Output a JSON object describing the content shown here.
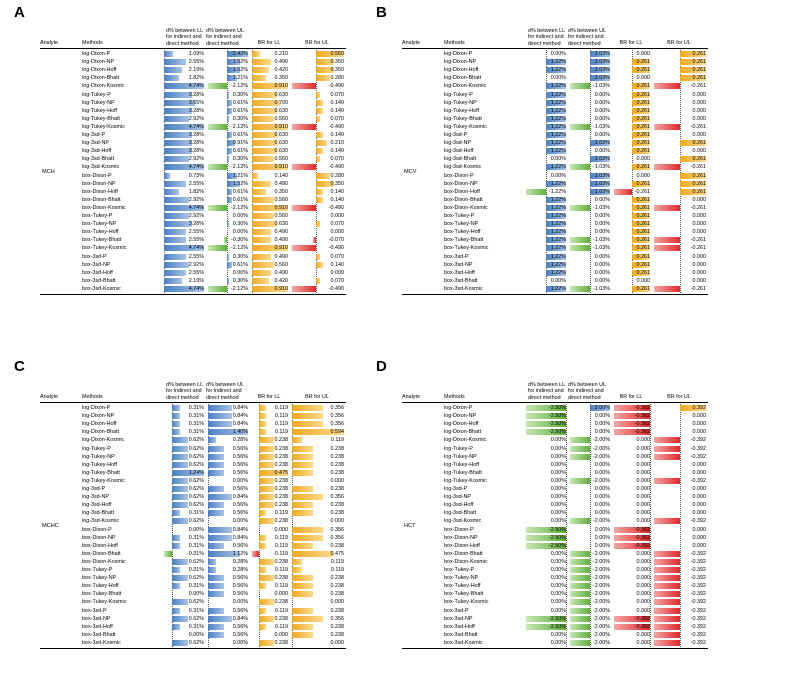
{
  "headers": {
    "analyte": "Analyte",
    "methods": "Methods",
    "dLL": "d% between LL for indirect and direct method",
    "dUL": "d% between UL for indirect and direct method",
    "brLL": "BR for LL",
    "brUL": "BR for UL"
  },
  "panels": [
    {
      "letter": "A",
      "analyte": "MCH",
      "rows": [
        [
          "log-Dixon-P",
          "1.09%",
          "2.42%",
          "0.210",
          "0.560"
        ],
        [
          "log-Dixon-NP",
          "2.55%",
          "1.52%",
          "0.490",
          "0.350"
        ],
        [
          "log-Dixon-Hoff",
          "2.19%",
          "1.52%",
          "0.420",
          "0.350"
        ],
        [
          "log-Dixon-Bhatt",
          "1.82%",
          "1.21%",
          "0.350",
          "0.280"
        ],
        [
          "log-Dixon-Kosmic",
          "4.74%",
          "-2.12%",
          "0.910",
          "-0.490"
        ],
        [
          "log-Tukey-P",
          "3.28%",
          "0.30%",
          "0.630",
          "0.070"
        ],
        [
          "log-Tukey-NP",
          "3.65%",
          "0.61%",
          "0.700",
          "0.140"
        ],
        [
          "log-Tukey-Hoff",
          "3.28%",
          "0.61%",
          "0.630",
          "0.140"
        ],
        [
          "log-Tukey-Bhatt",
          "2.92%",
          "0.30%",
          "0.560",
          "0.070"
        ],
        [
          "log-Tukey-Kosmic",
          "4.74%",
          "-2.12%",
          "0.910",
          "-0.490"
        ],
        [
          "log-3sd-P",
          "3.28%",
          "0.61%",
          "0.630",
          "0.140"
        ],
        [
          "log-3sd-NP",
          "3.28%",
          "0.91%",
          "0.630",
          "0.210"
        ],
        [
          "log-3sd-Hoff",
          "3.28%",
          "0.61%",
          "0.630",
          "0.140"
        ],
        [
          "log-3sd-Bhatt",
          "2.92%",
          "0.30%",
          "0.560",
          "0.070"
        ],
        [
          "log-3sd-Kosmic",
          "4.74%",
          "-2.12%",
          "0.910",
          "-0.490"
        ],
        [
          "box-Dixon-P",
          "0.73%",
          "1.21%",
          "0.140",
          "0.280"
        ],
        [
          "box-Dixon-NP",
          "2.55%",
          "1.52%",
          "0.490",
          "0.350"
        ],
        [
          "box-Dixon-Hoff",
          "1.82%",
          "0.61%",
          "0.350",
          "0.140"
        ],
        [
          "box-Dixon-Bhatt",
          "2.92%",
          "0.61%",
          "0.560",
          "0.140"
        ],
        [
          "box-Dixon-Kosmic",
          "4.74%",
          "-2.12%",
          "0.910",
          "-0.490"
        ],
        [
          "box-Tukey-P",
          "2.92%",
          "0.00%",
          "0.560",
          "0.000"
        ],
        [
          "box-Tukey-NP",
          "3.28%",
          "0.30%",
          "0.630",
          "0.070"
        ],
        [
          "box-Tukey-Hoff",
          "2.55%",
          "0.00%",
          "0.490",
          "0.000"
        ],
        [
          "box-Tukey-Bhatt",
          "2.55%",
          "-0.30%",
          "0.490",
          "-0.070"
        ],
        [
          "box-Tukey-Kosmic",
          "4.74%",
          "-2.12%",
          "0.910",
          "-0.490"
        ],
        [
          "box-3sd-P",
          "2.55%",
          "0.30%",
          "0.490",
          "0.070"
        ],
        [
          "box-3sd-NP",
          "2.92%",
          "0.61%",
          "0.560",
          "0.140"
        ],
        [
          "box-3sd-Hoff",
          "2.55%",
          "0.00%",
          "0.490",
          "0.000"
        ],
        [
          "box-3sd-Bhatt",
          "2.19%",
          "0.30%",
          "0.420",
          "0.070"
        ],
        [
          "box-3sd-Kosmic",
          "4.74%",
          "-2.12%",
          "0.910",
          "-0.490"
        ]
      ]
    },
    {
      "letter": "B",
      "analyte": "MCV",
      "rows": [
        [
          "log-Dixon-P",
          "0.00%",
          "1.03%",
          "0.000",
          "0.261"
        ],
        [
          "log-Dixon-NP",
          "1.22%",
          "1.03%",
          "0.261",
          "0.261"
        ],
        [
          "log-Dixon-Hoff",
          "1.22%",
          "1.03%",
          "0.261",
          "0.261"
        ],
        [
          "log-Dixon-Bhatt",
          "0.00%",
          "1.03%",
          "0.000",
          "0.261"
        ],
        [
          "log-Dixon-Kosmic",
          "1.22%",
          "-1.03%",
          "0.261",
          "-0.261"
        ],
        [
          "log-Tukey-P",
          "1.22%",
          "0.00%",
          "0.261",
          "0.000"
        ],
        [
          "log-Tukey-NP",
          "1.22%",
          "0.00%",
          "0.261",
          "0.000"
        ],
        [
          "log-Tukey-Hoff",
          "1.22%",
          "0.00%",
          "0.261",
          "0.000"
        ],
        [
          "log-Tukey-Bhatt",
          "1.22%",
          "0.00%",
          "0.261",
          "0.000"
        ],
        [
          "log-Tukey-Kosmic",
          "1.22%",
          "-1.03%",
          "0.261",
          "-0.261"
        ],
        [
          "log-3sd-P",
          "1.22%",
          "0.00%",
          "0.261",
          "0.000"
        ],
        [
          "log-3sd-NP",
          "1.22%",
          "1.03%",
          "0.261",
          "0.261"
        ],
        [
          "log-3sd-Hoff",
          "1.22%",
          "0.00%",
          "0.261",
          "0.000"
        ],
        [
          "log-3sd-Bhatt",
          "0.00%",
          "1.03%",
          "0.000",
          "0.261"
        ],
        [
          "log-3sd-Kosmic",
          "1.22%",
          "-1.03%",
          "0.261",
          "-0.261"
        ],
        [
          "box-Dixon-P",
          "0.00%",
          "1.03%",
          "0.000",
          "0.261"
        ],
        [
          "box-Dixon-NP",
          "1.22%",
          "1.03%",
          "0.261",
          "0.261"
        ],
        [
          "box-Dixon-Hoff",
          "-1.22%",
          "1.03%",
          "-0.261",
          "0.261"
        ],
        [
          "box-Dixon-Bhatt",
          "1.22%",
          "0.00%",
          "0.261",
          "0.000"
        ],
        [
          "box-Dixon-Kosmic",
          "1.22%",
          "-1.03%",
          "0.261",
          "-0.261"
        ],
        [
          "box-Tukey-P",
          "1.22%",
          "0.00%",
          "0.261",
          "0.000"
        ],
        [
          "box-Tukey-NP",
          "1.22%",
          "0.00%",
          "0.261",
          "0.000"
        ],
        [
          "box-Tukey-Hoff",
          "1.22%",
          "0.00%",
          "0.261",
          "0.000"
        ],
        [
          "box-Tukey-Bhatt",
          "1.22%",
          "-1.03%",
          "0.261",
          "-0.261"
        ],
        [
          "box-Tukey-Kosmic",
          "1.22%",
          "-1.03%",
          "0.261",
          "-0.261"
        ],
        [
          "box-3sd-P",
          "1.22%",
          "0.00%",
          "0.261",
          "0.000"
        ],
        [
          "box-3sd-NP",
          "1.22%",
          "0.00%",
          "0.261",
          "0.000"
        ],
        [
          "box-3sd-Hoff",
          "1.22%",
          "0.00%",
          "0.261",
          "0.000"
        ],
        [
          "box-3sd-Bhatt",
          "0.00%",
          "0.00%",
          "0.000",
          "0.000"
        ],
        [
          "box-3sd-Kosmic",
          "1.22%",
          "-1.03%",
          "0.261",
          "-0.261"
        ]
      ]
    },
    {
      "letter": "C",
      "analyte": "MCHC",
      "rows": [
        [
          "log-Dixon-P",
          "0.31%",
          "0.84%",
          "0.119",
          "0.356"
        ],
        [
          "log-Dixon-NP",
          "0.31%",
          "0.84%",
          "0.119",
          "0.356"
        ],
        [
          "log-Dixon-Hoff",
          "0.31%",
          "0.84%",
          "0.119",
          "0.356"
        ],
        [
          "log-Dixon-Bhatt",
          "0.31%",
          "1.40%",
          "0.119",
          "0.594"
        ],
        [
          "log-Dixon-Kosmic",
          "0.62%",
          "0.28%",
          "0.238",
          "0.119"
        ],
        [
          "log-Tukey-P",
          "0.62%",
          "0.56%",
          "0.238",
          "0.238"
        ],
        [
          "log-Tukey-NP",
          "0.62%",
          "0.56%",
          "0.238",
          "0.238"
        ],
        [
          "log-Tukey-Hoff",
          "0.62%",
          "0.56%",
          "0.238",
          "0.238"
        ],
        [
          "log-Tukey-Bhatt",
          "1.24%",
          "0.56%",
          "0.475",
          "0.238"
        ],
        [
          "log-Tukey-Kosmic",
          "0.62%",
          "0.00%",
          "0.238",
          "0.000"
        ],
        [
          "log-3sd-P",
          "0.62%",
          "0.56%",
          "0.238",
          "0.238"
        ],
        [
          "log-3sd-NP",
          "0.62%",
          "0.84%",
          "0.238",
          "0.356"
        ],
        [
          "log-3sd-Hoff",
          "0.62%",
          "0.56%",
          "0.238",
          "0.238"
        ],
        [
          "log-3sd-Bhatt",
          "0.31%",
          "0.56%",
          "0.119",
          "0.238"
        ],
        [
          "log-3sd-Kosmic",
          "0.62%",
          "0.00%",
          "0.238",
          "0.000"
        ],
        [
          "box-Dixon-P",
          "0.00%",
          "0.84%",
          "0.000",
          "0.356"
        ],
        [
          "box-Dixon-NP",
          "0.31%",
          "0.84%",
          "0.119",
          "0.356"
        ],
        [
          "box-Dixon-Hoff",
          "0.31%",
          "0.56%",
          "0.119",
          "0.238"
        ],
        [
          "box-Dixon-Bhatt",
          "-0.31%",
          "1.12%",
          "-0.119",
          "0.475"
        ],
        [
          "box-Dixon-Kosmic",
          "0.62%",
          "0.28%",
          "0.238",
          "0.119"
        ],
        [
          "box-Tukey-P",
          "0.31%",
          "0.28%",
          "0.119",
          "0.119"
        ],
        [
          "box-Tukey-NP",
          "0.62%",
          "0.56%",
          "0.238",
          "0.238"
        ],
        [
          "box-Tukey-Hoff",
          "0.31%",
          "0.56%",
          "0.119",
          "0.238"
        ],
        [
          "box-Tukey-Bhatt",
          "0.00%",
          "0.56%",
          "0.000",
          "0.238"
        ],
        [
          "box-Tukey-Kosmic",
          "0.62%",
          "0.00%",
          "0.238",
          "0.000"
        ],
        [
          "box-3sd-P",
          "0.31%",
          "0.56%",
          "0.119",
          "0.238"
        ],
        [
          "box-3sd-NP",
          "0.62%",
          "0.84%",
          "0.238",
          "0.356"
        ],
        [
          "box-3sd-Hoff",
          "0.31%",
          "0.56%",
          "0.119",
          "0.238"
        ],
        [
          "box-3sd-Bhatt",
          "0.00%",
          "0.56%",
          "0.000",
          "0.238"
        ],
        [
          "box-3sd-Kosmic",
          "0.62%",
          "0.00%",
          "0.238",
          "0.000"
        ]
      ]
    },
    {
      "letter": "D",
      "analyte": "HCT",
      "rows": [
        [
          "log-Dixon-P",
          "-2.50%",
          "2.00%",
          "-0.392",
          "0.392"
        ],
        [
          "log-Dixon-NP",
          "-2.50%",
          "0.00%",
          "-0.392",
          "0.000"
        ],
        [
          "log-Dixon-Hoff",
          "-2.50%",
          "0.00%",
          "-0.392",
          "0.000"
        ],
        [
          "log-Dixon-Bhatt",
          "-2.50%",
          "0.00%",
          "-0.392",
          "0.000"
        ],
        [
          "log-Dixon-Kosmic",
          "0.00%",
          "-2.00%",
          "0.000",
          "-0.392"
        ],
        [
          "log-Tukey-P",
          "0.00%",
          "-2.00%",
          "0.000",
          "-0.392"
        ],
        [
          "log-Tukey-NP",
          "0.00%",
          "-2.00%",
          "0.000",
          "-0.392"
        ],
        [
          "log-Tukey-Hoff",
          "0.00%",
          "0.00%",
          "0.000",
          "0.000"
        ],
        [
          "log-Tukey-Bhatt",
          "0.00%",
          "0.00%",
          "0.000",
          "0.000"
        ],
        [
          "log-Tukey-Kosmic",
          "0.00%",
          "-2.00%",
          "0.000",
          "-0.392"
        ],
        [
          "log-3sd-P",
          "0.00%",
          "0.00%",
          "0.000",
          "0.000"
        ],
        [
          "log-3sd-NP",
          "0.00%",
          "0.00%",
          "0.000",
          "0.000"
        ],
        [
          "log-3sd-Hoff",
          "0.00%",
          "0.00%",
          "0.000",
          "0.000"
        ],
        [
          "log-3sd-Bhatt",
          "0.00%",
          "0.00%",
          "0.000",
          "0.000"
        ],
        [
          "log-3sd-Kosmic",
          "0.00%",
          "-2.00%",
          "0.000",
          "-0.392"
        ],
        [
          "box-Dixon-P",
          "-2.50%",
          "0.00%",
          "-0.392",
          "0.000"
        ],
        [
          "box-Dixon-NP",
          "-2.50%",
          "0.00%",
          "-0.392",
          "0.000"
        ],
        [
          "box-Dixon-Hoff",
          "-2.50%",
          "0.00%",
          "-0.392",
          "0.000"
        ],
        [
          "box-Dixon-Bhatt",
          "0.00%",
          "-2.00%",
          "0.000",
          "-0.392"
        ],
        [
          "box-Dixon-Kosmic",
          "0.00%",
          "-2.00%",
          "0.000",
          "-0.392"
        ],
        [
          "box-Tukey-P",
          "0.00%",
          "-2.00%",
          "0.000",
          "-0.392"
        ],
        [
          "box-Tukey-NP",
          "0.00%",
          "-2.00%",
          "0.000",
          "-0.392"
        ],
        [
          "box-Tukey-Hoff",
          "0.00%",
          "-2.00%",
          "0.000",
          "-0.392"
        ],
        [
          "box-Tukey-Bhatt",
          "0.00%",
          "-2.00%",
          "0.000",
          "-0.392"
        ],
        [
          "box-Tukey-Kosmic",
          "0.00%",
          "-2.00%",
          "0.000",
          "-0.392"
        ],
        [
          "box-3sd-P",
          "0.00%",
          "-2.00%",
          "0.000",
          "-0.392"
        ],
        [
          "box-3sd-NP",
          "-2.50%",
          "-2.00%",
          "-0.392",
          "-0.392"
        ],
        [
          "box-3sd-Hoff",
          "-2.50%",
          "-2.00%",
          "-0.392",
          "-0.392"
        ],
        [
          "box-3sd-Bhatt",
          "0.00%",
          "-2.00%",
          "0.000",
          "-0.392"
        ],
        [
          "box-3sd-Kosmic",
          "0.00%",
          "-2.00%",
          "0.000",
          "-0.392"
        ]
      ]
    }
  ]
}
